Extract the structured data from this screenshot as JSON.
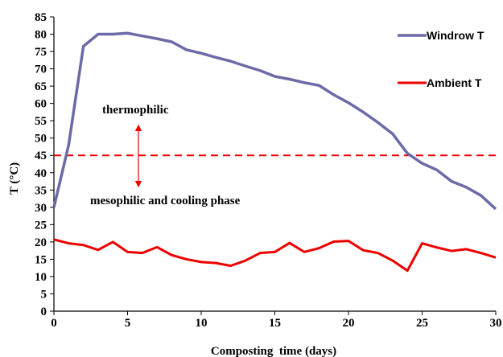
{
  "chart_data": {
    "type": "line",
    "xlabel": "Composting  time (days)",
    "ylabel": "T (°C)",
    "xlim": [
      0,
      30
    ],
    "ylim": [
      0,
      85
    ],
    "xticks": [
      0,
      5,
      10,
      15,
      20,
      25,
      30
    ],
    "yticks": [
      0,
      5,
      10,
      15,
      20,
      25,
      30,
      35,
      40,
      45,
      50,
      55,
      60,
      65,
      70,
      75,
      80,
      85
    ],
    "grid": false,
    "legend_position": "top-right",
    "x": [
      0,
      1,
      2,
      3,
      4,
      5,
      6,
      7,
      8,
      9,
      10,
      11,
      12,
      13,
      14,
      15,
      16,
      17,
      18,
      19,
      20,
      21,
      22,
      23,
      24,
      25,
      26,
      27,
      28,
      29,
      30
    ],
    "series": [
      {
        "name": "Windrow T",
        "color": "#6b6ba8",
        "values": [
          30,
          48,
          76.5,
          80,
          80,
          80.3,
          79.5,
          78.7,
          77.8,
          75.5,
          74.5,
          73.3,
          72.2,
          70.8,
          69.5,
          67.8,
          67,
          66,
          65.2,
          62.5,
          60.2,
          57.5,
          54.5,
          51.2,
          45.6,
          42.7,
          40.8,
          37.5,
          35.8,
          33.4,
          29.5
        ]
      },
      {
        "name": "Ambient T",
        "color": "#ee0000",
        "values": [
          20.7,
          19.6,
          19.1,
          17.7,
          20,
          17.1,
          16.8,
          18.5,
          16.2,
          15,
          14.2,
          13.9,
          13.1,
          14.6,
          16.8,
          17.1,
          19.7,
          17.1,
          18.2,
          20.1,
          20.3,
          17.6,
          16.8,
          14.6,
          11.7,
          19.6,
          18.4,
          17.4,
          17.9,
          16.8,
          15.5
        ]
      }
    ],
    "reference_line": {
      "y": 45,
      "color": "#ee0000",
      "style": "dashed"
    },
    "annotations": [
      {
        "text": "thermophilic"
      },
      {
        "text": "mesophilic and cooling phase"
      }
    ]
  }
}
